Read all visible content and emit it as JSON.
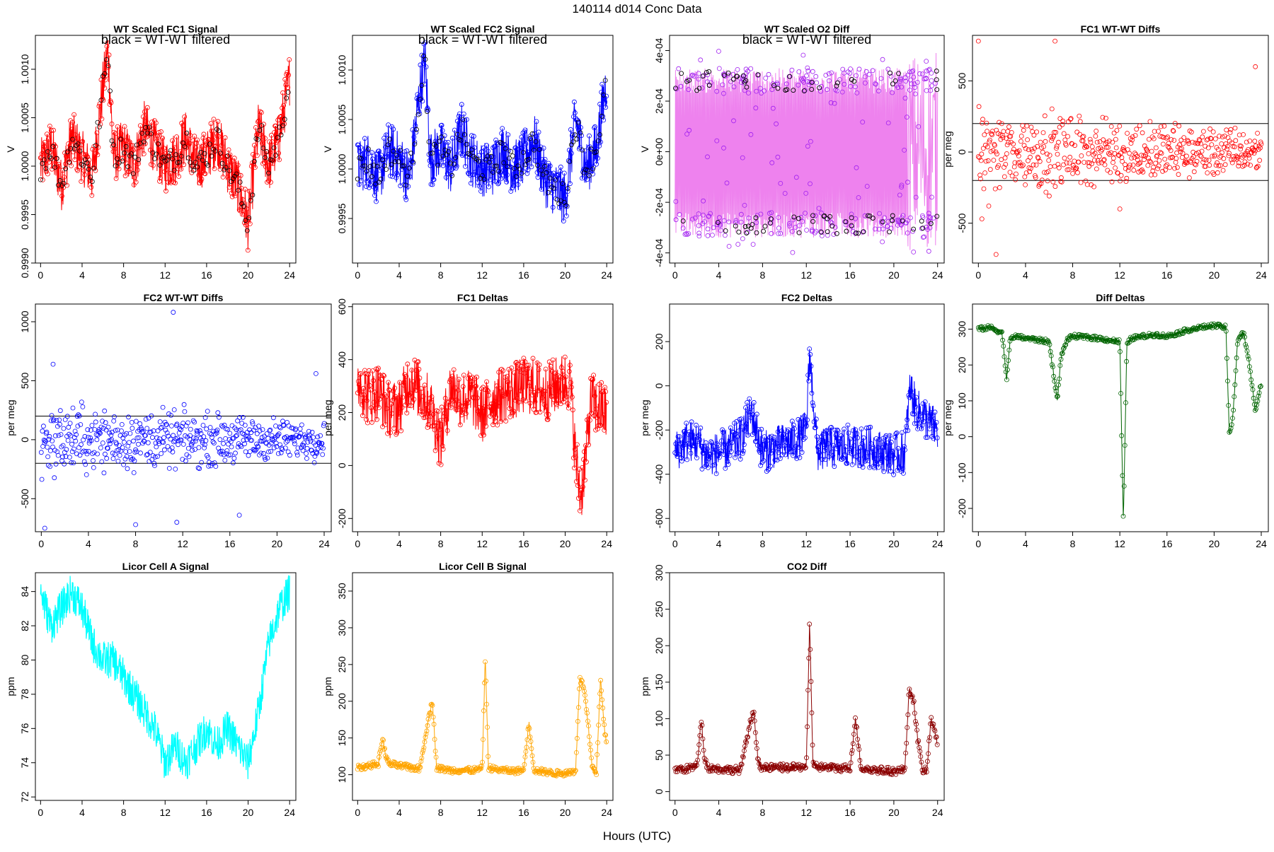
{
  "figure": {
    "title": "140114   d014   Conc Data",
    "xlabel": "Hours (UTC)",
    "x_ticks": [
      0,
      4,
      8,
      12,
      16,
      20,
      24
    ],
    "xlim": [
      -0.5,
      24.6
    ]
  },
  "chart_data": [
    {
      "id": "p1",
      "type": "line",
      "title": "WT Scaled FC1 Signal",
      "ylabel": "V",
      "note": "black = WT-WT filtered",
      "color": "#ff0000",
      "overlay_color": "#000000",
      "ylim": [
        0.999,
        1.00135
      ],
      "yticks": [
        "0.9990",
        "0.9995",
        "1.0000",
        "1.0005",
        "1.0010"
      ],
      "ytick_values": [
        0.999,
        0.9995,
        1.0,
        1.0005,
        1.001
      ],
      "x": [
        0,
        1,
        2,
        3,
        4,
        5,
        6,
        6.5,
        7,
        8,
        9,
        10,
        11,
        12,
        13,
        14,
        15,
        16,
        17,
        18,
        19,
        20,
        21,
        22,
        23,
        24
      ],
      "y": [
        1.0,
        1.0002,
        0.9998,
        1.0003,
        1.0001,
        0.9999,
        1.0008,
        1.0012,
        1.0001,
        1.0002,
        1.0,
        1.0004,
        1.0002,
        1.0,
        1.0001,
        1.0003,
        1.0,
        1.0001,
        1.0003,
        1.0,
        0.9998,
        0.9994,
        1.0004,
        1.0,
        1.0003,
        1.0009
      ],
      "noise": 0.00028,
      "points": true
    },
    {
      "id": "p2",
      "type": "line",
      "title": "WT Scaled FC2 Signal",
      "ylabel": "V",
      "note": "black = WT-WT filtered",
      "color": "#0000ff",
      "overlay_color": "#000000",
      "ylim": [
        0.99905,
        1.00135
      ],
      "yticks": [
        "0.9995",
        "1.0000",
        "1.0005",
        "1.0010"
      ],
      "ytick_values": [
        0.9995,
        1.0,
        1.0005,
        1.001
      ],
      "x": [
        0,
        1,
        2,
        3,
        4,
        5,
        6,
        6.5,
        7,
        8,
        9,
        10,
        11,
        12,
        13,
        14,
        15,
        16,
        17,
        18,
        19,
        20,
        21,
        22,
        23,
        24
      ],
      "y": [
        1.0,
        1.0001,
        0.9999,
        1.0002,
        1.0001,
        0.9999,
        1.0008,
        1.0011,
        1.0001,
        1.0002,
        1.0,
        1.0004,
        1.0001,
        1.0,
        1.0,
        1.0002,
        1.0,
        1.0001,
        1.0003,
        0.9999,
        0.9998,
        0.9997,
        1.0005,
        1.0,
        1.0002,
        1.0009
      ],
      "noise": 0.00028,
      "points": true
    },
    {
      "id": "p3",
      "type": "scatter",
      "title": "WT Scaled O2 Diff",
      "ylabel": "V",
      "note": "black = WT-WT filtered",
      "color": "#ee82ee",
      "point_color": "#a020f0",
      "overlay_color": "#000000",
      "ylim": [
        -0.00044,
        0.00046
      ],
      "yticks": [
        "-4e-04",
        "-2e-04",
        "0e+00",
        "2e-04",
        "4e-04"
      ],
      "ytick_values": [
        -0.0004,
        -0.0002,
        0.0,
        0.0002,
        0.0004
      ],
      "upper_level": 0.00028,
      "lower_level": -0.00029
    },
    {
      "id": "p4",
      "type": "scatter",
      "title": "FC1 WT-WT Diffs",
      "ylabel": "per meg",
      "color": "#ff0000",
      "ylim": [
        -780,
        820
      ],
      "yticks": [
        "-500",
        "0",
        "500"
      ],
      "ytick_values": [
        -500,
        0,
        500
      ],
      "hlines": [
        200,
        -200
      ],
      "spread": 180,
      "outliers": [
        [
          0,
          780
        ],
        [
          6.5,
          780
        ],
        [
          23.5,
          600
        ],
        [
          1.5,
          -720
        ],
        [
          0.3,
          -470
        ],
        [
          12,
          -400
        ]
      ]
    },
    {
      "id": "p5",
      "type": "scatter",
      "title": "FC2 WT-WT Diffs",
      "ylabel": "per meg",
      "color": "#0000ff",
      "ylim": [
        -780,
        1150
      ],
      "yticks": [
        "-500",
        "0",
        "500",
        "1000"
      ],
      "ytick_values": [
        -500,
        0,
        500,
        1000
      ],
      "hlines": [
        200,
        -200
      ],
      "spread": 180,
      "outliers": [
        [
          11.2,
          1080
        ],
        [
          0.3,
          -750
        ],
        [
          8,
          -720
        ],
        [
          11.5,
          -700
        ],
        [
          16.8,
          -640
        ],
        [
          1,
          640
        ],
        [
          23.3,
          560
        ]
      ]
    },
    {
      "id": "p6",
      "type": "line",
      "title": "FC1 Deltas",
      "ylabel": "per meg",
      "color": "#ff0000",
      "ylim": [
        -250,
        610
      ],
      "yticks": [
        "-200",
        "0",
        "200",
        "400",
        "600"
      ],
      "ytick_values": [
        -200,
        0,
        200,
        400,
        600
      ],
      "x": [
        0,
        1,
        2,
        3,
        4,
        5,
        6,
        7,
        8,
        9,
        10,
        11,
        12,
        13,
        14,
        15,
        16,
        17,
        18,
        19,
        20,
        20.5,
        21,
        21.5,
        22,
        22.5,
        23,
        24
      ],
      "y": [
        330,
        260,
        280,
        210,
        220,
        330,
        280,
        230,
        90,
        300,
        250,
        260,
        190,
        250,
        270,
        280,
        300,
        300,
        270,
        300,
        320,
        310,
        30,
        -120,
        40,
        250,
        220,
        200
      ],
      "noise": 110,
      "points": true
    },
    {
      "id": "p7",
      "type": "line",
      "title": "FC2 Deltas",
      "ylabel": "per meg",
      "color": "#0000ff",
      "ylim": [
        -660,
        370
      ],
      "yticks": [
        "-600",
        "-400",
        "-200",
        "0",
        "200"
      ],
      "ytick_values": [
        -600,
        -400,
        -200,
        0,
        200
      ],
      "x": [
        0,
        1,
        2,
        3,
        4,
        5,
        6,
        7,
        8,
        9,
        10,
        11,
        12,
        12.3,
        13,
        14,
        15,
        16,
        17,
        18,
        19,
        20,
        21,
        21.5,
        22,
        23,
        24
      ],
      "y": [
        -300,
        -250,
        -250,
        -320,
        -300,
        -280,
        -240,
        -120,
        -300,
        -280,
        -260,
        -250,
        -200,
        150,
        -300,
        -280,
        -280,
        -270,
        -280,
        -280,
        -300,
        -310,
        -300,
        0,
        -100,
        -150,
        -200
      ],
      "noise": 95,
      "points": true
    },
    {
      "id": "p8",
      "type": "line",
      "title": "Diff Deltas",
      "ylabel": "per meg",
      "color": "#006400",
      "ylim": [
        -265,
        370
      ],
      "yticks": [
        "-200",
        "-100",
        "0",
        "100",
        "200",
        "300"
      ],
      "ytick_values": [
        -200,
        -100,
        0,
        100,
        200,
        300
      ],
      "x": [
        0,
        1,
        2,
        2.4,
        2.7,
        3,
        4,
        5,
        6,
        6.7,
        7,
        7.5,
        8,
        9,
        10,
        11,
        12,
        12.3,
        12.6,
        13,
        14,
        15,
        16,
        17,
        18,
        19,
        20,
        21,
        21.3,
        21.6,
        22,
        22.5,
        23,
        23.5,
        24
      ],
      "y": [
        300,
        305,
        290,
        160,
        270,
        280,
        275,
        270,
        265,
        100,
        220,
        270,
        280,
        278,
        275,
        270,
        265,
        -240,
        260,
        275,
        280,
        285,
        280,
        290,
        300,
        305,
        310,
        305,
        0,
        60,
        270,
        290,
        200,
        70,
        150
      ],
      "noise": 6,
      "points": true
    },
    {
      "id": "p9",
      "type": "line",
      "title": "Licor Cell A Signal",
      "ylabel": "ppm",
      "color": "#00ffff",
      "ylim": [
        71.8,
        85.1
      ],
      "yticks": [
        "72",
        "74",
        "76",
        "78",
        "80",
        "82",
        "84"
      ],
      "ytick_values": [
        72,
        74,
        76,
        78,
        80,
        82,
        84
      ],
      "x": [
        0,
        1,
        2,
        3,
        4,
        5,
        6,
        7,
        8,
        9,
        10,
        11,
        12,
        13,
        14,
        15,
        16,
        17,
        18,
        19,
        20,
        21,
        22,
        23,
        24
      ],
      "y": [
        84,
        82,
        83,
        84,
        83,
        81,
        80,
        80,
        79,
        78,
        77,
        76,
        74,
        75,
        74,
        75,
        76,
        75,
        76,
        75,
        74,
        77,
        81,
        83,
        84
      ],
      "noise": 1.1,
      "points": false
    },
    {
      "id": "p10",
      "type": "line",
      "title": "Licor Cell B Signal",
      "ylabel": "ppm",
      "color": "#ffa500",
      "ylim": [
        65,
        375
      ],
      "yticks": [
        "100",
        "150",
        "200",
        "250",
        "300",
        "350"
      ],
      "ytick_values": [
        100,
        150,
        200,
        250,
        300,
        350
      ],
      "x": [
        0,
        1,
        2,
        2.4,
        2.7,
        3,
        4,
        5,
        6,
        6.8,
        7.2,
        7.6,
        8,
        9,
        10,
        11,
        12,
        12.3,
        12.6,
        13,
        14,
        15,
        16,
        16.5,
        17,
        18,
        19,
        20,
        21,
        21.4,
        21.8,
        22.2,
        22.6,
        23,
        23.4,
        23.8,
        24
      ],
      "y": [
        110,
        112,
        115,
        150,
        125,
        115,
        112,
        110,
        108,
        175,
        200,
        110,
        108,
        106,
        106,
        106,
        108,
        260,
        110,
        108,
        106,
        105,
        106,
        170,
        106,
        104,
        102,
        102,
        105,
        230,
        220,
        170,
        110,
        100,
        230,
        160,
        140
      ],
      "noise": 4,
      "points": true
    },
    {
      "id": "p11",
      "type": "line",
      "title": "CO2 Diff",
      "ylabel": "ppm",
      "color": "#8b0000",
      "ylim": [
        -12,
        300
      ],
      "yticks": [
        "0",
        "50",
        "100",
        "150",
        "200",
        "250",
        "300"
      ],
      "ytick_values": [
        0,
        50,
        100,
        150,
        200,
        250,
        300
      ],
      "x": [
        0,
        1,
        2,
        2.4,
        2.7,
        3,
        4,
        5,
        6,
        6.8,
        7.2,
        7.6,
        8,
        9,
        10,
        11,
        12,
        12.3,
        12.6,
        13,
        14,
        15,
        16,
        16.5,
        17,
        18,
        19,
        20,
        21,
        21.4,
        21.8,
        22.2,
        22.6,
        23,
        23.4,
        23.8,
        24
      ],
      "y": [
        30,
        31,
        35,
        100,
        45,
        33,
        31,
        30,
        30,
        90,
        110,
        40,
        32,
        33,
        33,
        33,
        35,
        230,
        40,
        34,
        33,
        32,
        33,
        100,
        32,
        30,
        29,
        28,
        30,
        140,
        125,
        70,
        30,
        28,
        100,
        80,
        60
      ],
      "noise": 5,
      "points": true
    }
  ]
}
